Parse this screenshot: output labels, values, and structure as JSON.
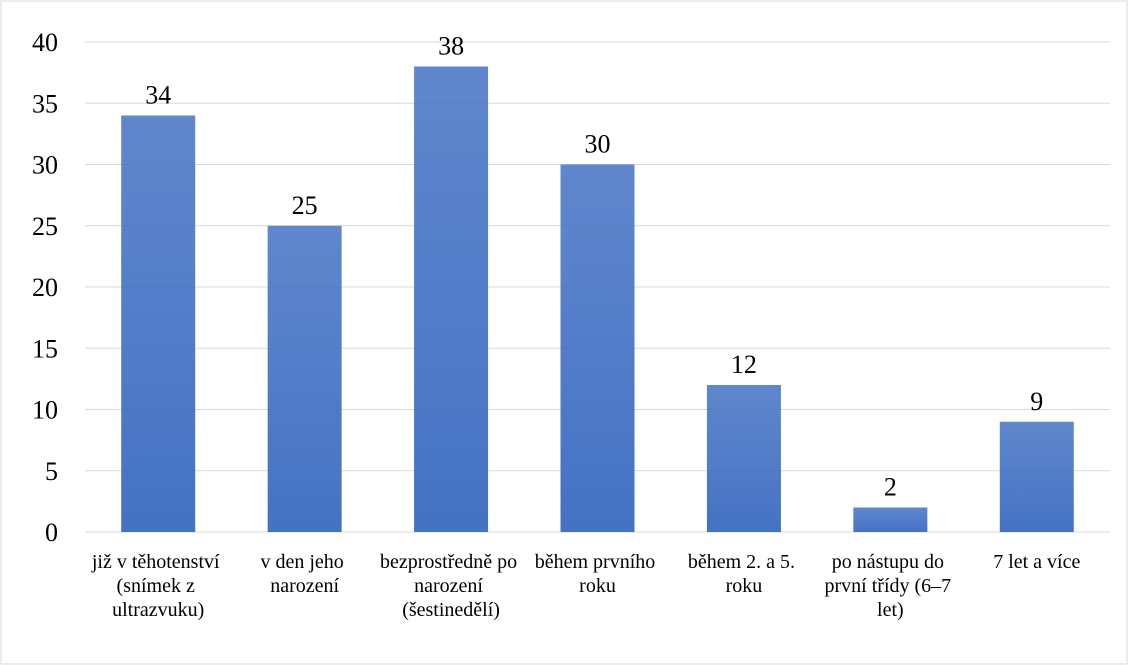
{
  "chart_data": {
    "type": "bar",
    "categories": [
      "již v těhotenství (snímek z ultrazvuku)",
      "v den jeho narození",
      "bezprostředně po narození (šestinedělí)",
      "během prvního roku",
      "během 2. a 5. roku",
      "po nástupu do první třídy (6–7 let)",
      "7 let a více"
    ],
    "values": [
      34,
      25,
      38,
      30,
      12,
      2,
      9
    ],
    "color": "#4472c4",
    "ylim": [
      0,
      40
    ],
    "yticks": [
      0,
      5,
      10,
      15,
      20,
      25,
      30,
      35,
      40
    ],
    "grid": true
  }
}
